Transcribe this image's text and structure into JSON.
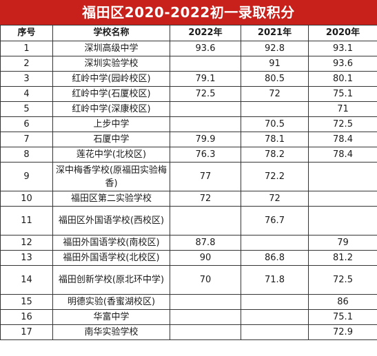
{
  "title": "福田区2020-2022初一录取积分",
  "headers": {
    "rank": "序号",
    "school": "学校名称",
    "y2022": "2022年",
    "y2021": "2021年",
    "y2020": "2020年"
  },
  "rows": [
    {
      "rank": "1",
      "school": "深圳高级中学",
      "y2022": "93.6",
      "y2021": "92.8",
      "y2020": "93.1"
    },
    {
      "rank": "2",
      "school": "深圳实验学校",
      "y2022": "",
      "y2021": "91",
      "y2020": "93.6"
    },
    {
      "rank": "3",
      "school": "红岭中学(园岭校区)",
      "y2022": "79.1",
      "y2021": "80.5",
      "y2020": "80.1"
    },
    {
      "rank": "4",
      "school": "红岭中学(石厦校区)",
      "y2022": "72.5",
      "y2021": "72",
      "y2020": "75.1"
    },
    {
      "rank": "5",
      "school": "红岭中学(深康校区)",
      "y2022": "",
      "y2021": "",
      "y2020": "71"
    },
    {
      "rank": "6",
      "school": "上步中学",
      "y2022": "",
      "y2021": "70.5",
      "y2020": "72.5"
    },
    {
      "rank": "7",
      "school": "石厦中学",
      "y2022": "79.9",
      "y2021": "78.1",
      "y2020": "78.4"
    },
    {
      "rank": "8",
      "school": "莲花中学(北校区)",
      "y2022": "76.3",
      "y2021": "78.2",
      "y2020": "78.4"
    },
    {
      "rank": "9",
      "school": "深中梅香学校(原福田实验梅香)",
      "y2022": "77",
      "y2021": "72.2",
      "y2020": ""
    },
    {
      "rank": "10",
      "school": "福田区第二实验学校",
      "y2022": "72",
      "y2021": "72",
      "y2020": ""
    },
    {
      "rank": "11",
      "school": "福田区外国语学校(西校区)",
      "y2022": "",
      "y2021": "76.7",
      "y2020": ""
    },
    {
      "rank": "12",
      "school": "福田外国语学校(南校区)",
      "y2022": "87.8",
      "y2021": "",
      "y2020": "79"
    },
    {
      "rank": "13",
      "school": "福田外国语学校(北校区)",
      "y2022": "90",
      "y2021": "86.8",
      "y2020": "81.2"
    },
    {
      "rank": "14",
      "school": "福田创新学校(原北环中学)",
      "y2022": "70",
      "y2021": "71.8",
      "y2020": "72.5"
    },
    {
      "rank": "15",
      "school": "明德实验(香蜜湖校区)",
      "y2022": "",
      "y2021": "",
      "y2020": "86"
    },
    {
      "rank": "16",
      "school": "华富中学",
      "y2022": "",
      "y2021": "",
      "y2020": "75.1"
    },
    {
      "rank": "17",
      "school": "南华实验学校",
      "y2022": "",
      "y2021": "",
      "y2020": "72.9"
    }
  ]
}
